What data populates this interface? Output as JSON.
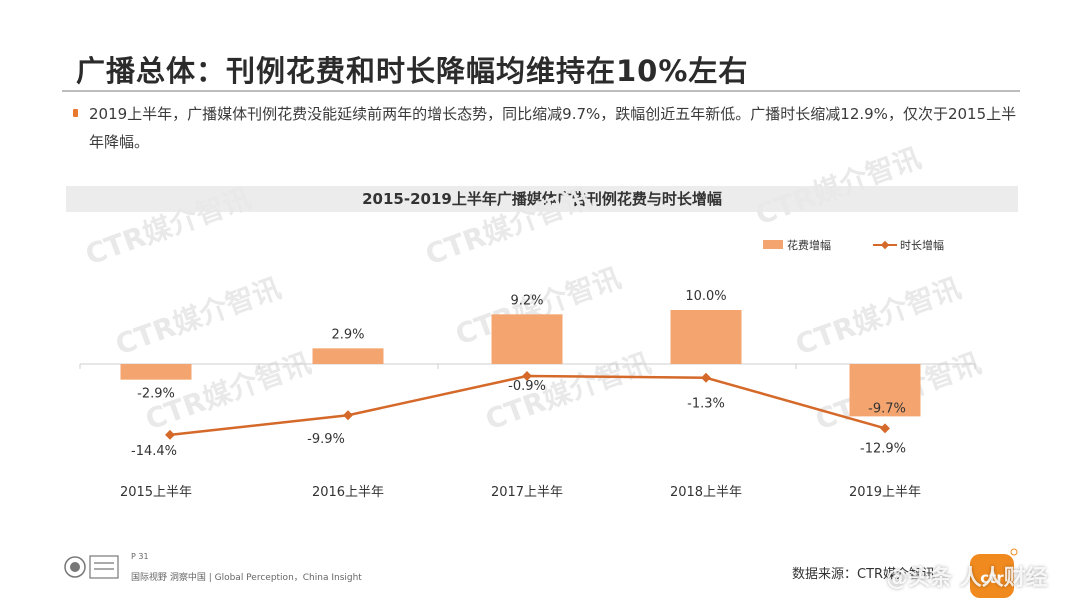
{
  "page": {
    "title": "广播总体：刊例花费和时长降幅均维持在10%左右",
    "bullet": "2019上半年，广播媒体刊例花费没能延续前两年的增长态势，同比缩减9.7%，跌幅创近五年新低。广播时长缩减12.9%，仅次于2015上半年降幅。",
    "footer_page": "P 31",
    "footer_slogan": "国际视野 洞察中国 | Global Perception，China Insight",
    "source": "数据来源：CTR媒介智讯",
    "watermark_text": "CTR媒介智讯",
    "corner_watermark": "@头条 人人财经"
  },
  "colors": {
    "bar": "#f4a56f",
    "line": "#d4692a",
    "accent": "#e8792e"
  },
  "chart_data": {
    "type": "bar",
    "title": "2015-2019上半年广播媒体广告刊例花费与时长增幅",
    "categories": [
      "2015上半年",
      "2016上半年",
      "2017上半年",
      "2018上半年",
      "2019上半年"
    ],
    "series": [
      {
        "name": "花费增幅",
        "type": "bar",
        "values": [
          -2.9,
          2.9,
          9.2,
          10.0,
          -9.7
        ],
        "labels": [
          "-2.9%",
          "2.9%",
          "9.2%",
          "10.0%",
          "-9.7%"
        ]
      },
      {
        "name": "时长增幅",
        "type": "line",
        "values": [
          -14.4,
          -9.9,
          -0.9,
          -1.3,
          -12.9
        ],
        "labels": [
          "-14.4%",
          "-9.9%",
          "-0.9%",
          "-1.3%",
          "-12.9%"
        ]
      }
    ],
    "legend_position": "top-right",
    "grid": false
  }
}
